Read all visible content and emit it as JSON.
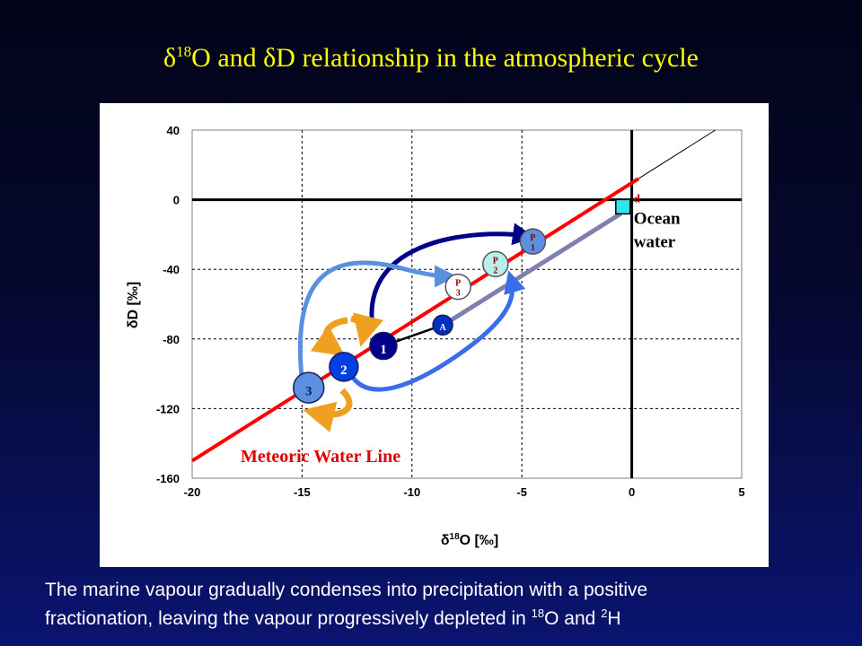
{
  "title": {
    "d1": "δ",
    "sup1": "18",
    "t1": "O and ",
    "d2": "δ",
    "t2": "D relationship in the atmospheric cycle"
  },
  "caption": {
    "line1": "The marine vapour gradually condenses into precipitation with a positive",
    "line2_a": "fractionation, leaving the vapour progressively depleted in ",
    "sup18": "18",
    "line2_b": "O and ",
    "sup2": "2",
    "line2_c": "H"
  },
  "colors": {
    "title": "#ffff00",
    "mwl": "#ff0000",
    "evap": "#8080b0",
    "ocean": "#33e6e6",
    "vapour_dark": "#00008b",
    "vapour_mid": "#0033cc",
    "vapour_light": "#5b8fe0",
    "arrow_orange": "#f0a020"
  },
  "chart_data": {
    "type": "scatter",
    "xlim": [
      -20,
      5
    ],
    "ylim": [
      -160,
      40
    ],
    "xticks": [
      "-20",
      "-15",
      "-10",
      "-5",
      "0",
      "5"
    ],
    "yticks": [
      "40",
      "0",
      "-40",
      "-80",
      "-120",
      "-160"
    ],
    "xticks_values": [
      -20,
      -15,
      -10,
      -5,
      0,
      5
    ],
    "yticks_values": [
      40,
      0,
      -40,
      -80,
      -120,
      -160
    ],
    "xlabel": {
      "pre": "δ",
      "sup": "18",
      "post": "O [‰]"
    },
    "ylabel": "δD [‰]",
    "grid": true,
    "mwl_label": "Meteoric Water Line",
    "ocean_label_1": "Ocean",
    "ocean_label_2": "water",
    "d_label": "d",
    "mwl": {
      "x": [
        -20,
        3.8
      ],
      "y": [
        -150,
        40
      ]
    },
    "evaporation_line": {
      "x": [
        -8.7,
        -0.5
      ],
      "y": [
        -73,
        -8
      ]
    },
    "ocean_point": {
      "x": -0.4,
      "y": -4
    },
    "vapour_points": [
      {
        "label": "1",
        "x": -11.3,
        "y": -84
      },
      {
        "label": "2",
        "x": -13.1,
        "y": -96
      },
      {
        "label": "3",
        "x": -14.7,
        "y": -108
      },
      {
        "label": "A",
        "x": -8.6,
        "y": -72
      }
    ],
    "precip_points": [
      {
        "label": "P1",
        "x": -4.5,
        "y": -24
      },
      {
        "label": "P2",
        "x": -6.2,
        "y": -37
      },
      {
        "label": "P3",
        "x": -7.9,
        "y": -50
      }
    ]
  }
}
